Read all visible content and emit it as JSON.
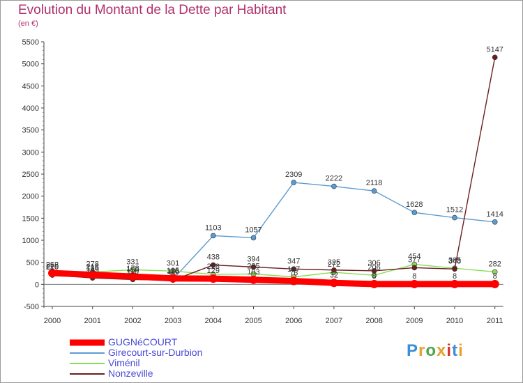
{
  "title": "Evolution du Montant de la Dette par Habitant",
  "subtitle": "(en €)",
  "logo": {
    "text": "Proxiti",
    "colors": [
      "#3a8fd6",
      "#e8a030",
      "#4aa84a",
      "#e8a030",
      "#d6342c",
      "#3a8fd6",
      "#e8a030"
    ]
  },
  "chart_data": {
    "type": "line",
    "title": "Evolution du Montant de la Dette par Habitant",
    "ylabel": "(en €)",
    "xlabel": "",
    "x": [
      "2000",
      "2001",
      "2002",
      "2003",
      "2004",
      "2005",
      "2006",
      "2007",
      "2008",
      "2009",
      "2010",
      "2011"
    ],
    "ylim": [
      -500,
      5500
    ],
    "yticks": [
      -500,
      0,
      500,
      1000,
      1500,
      2000,
      2500,
      3000,
      3500,
      4000,
      4500,
      5000,
      5500
    ],
    "grid": false,
    "legend_position": "bottom-left",
    "series": [
      {
        "name": "GUGNéCOURT",
        "color": "#ff0000",
        "values": [
          255,
          218,
          178,
          135,
          129,
          103,
          76,
          32,
          8,
          8,
          8,
          8
        ]
      },
      {
        "name": "Girecourt-sur-Durbion",
        "color": "#5b9bcf",
        "values": [
          220,
          185,
          150,
          116,
          1103,
          1057,
          2309,
          2222,
          2118,
          1628,
          1512,
          1414
        ]
      },
      {
        "name": "Viménil",
        "color": "#88dd55",
        "values": [
          262,
          278,
          331,
          301,
          228,
          235,
          167,
          272,
          206,
          454,
          365,
          282
        ]
      },
      {
        "name": "Nonzeville",
        "color": "#6b1e1e",
        "values": [
          210,
          145,
          110,
          95,
          438,
          394,
          347,
          325,
          306,
          377,
          348,
          5147
        ]
      }
    ]
  }
}
